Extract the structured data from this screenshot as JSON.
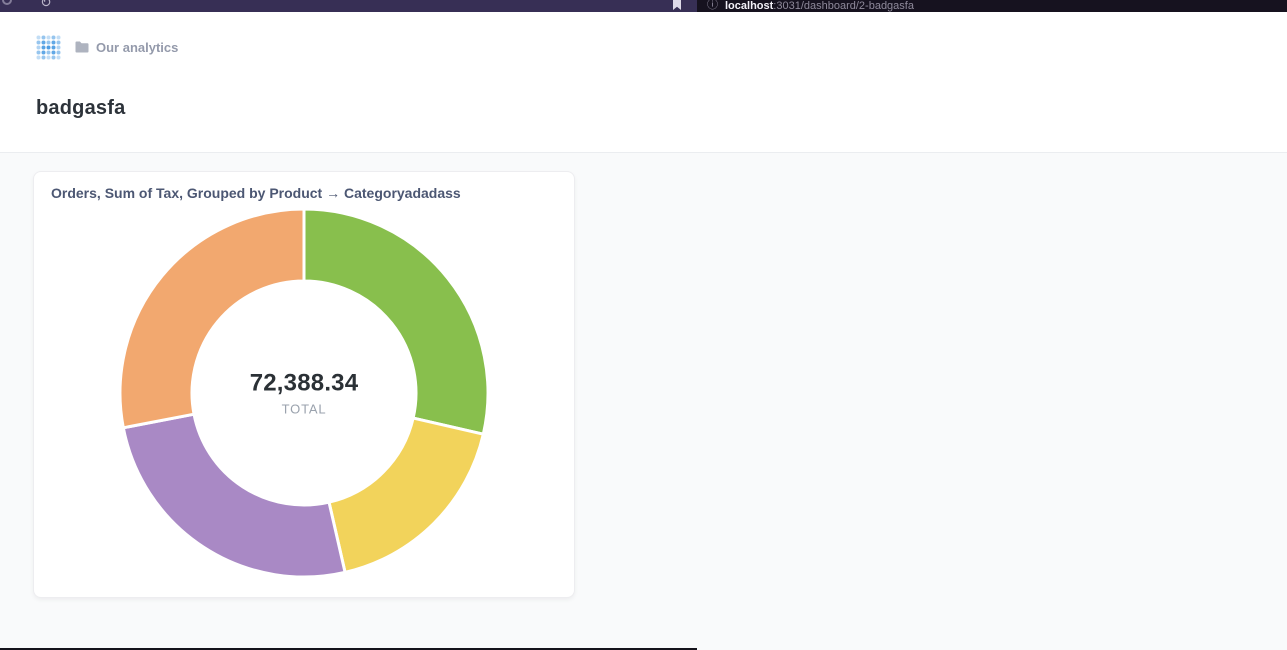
{
  "browser": {
    "url_host": "localhost",
    "url_rest": ":3031/dashboard/2-badgasfa"
  },
  "header": {
    "collection": "Our analytics"
  },
  "page": {
    "title": "badgasfa"
  },
  "card": {
    "title": "Orders, Sum of Tax, Grouped by Product → Categoryadadass"
  },
  "chart_data": {
    "type": "pie",
    "donut": true,
    "title": "Orders, Sum of Tax, Grouped by Product → Categoryadadass",
    "total_value": "72,388.34",
    "total_label": "TOTAL",
    "legend": false,
    "start_angle_deg": 0,
    "direction": "clockwise-from-top",
    "segments": [
      {
        "name": "green",
        "color": "#88BF4D",
        "value": 20700.0
      },
      {
        "name": "yellow",
        "color": "#F2D35B",
        "value": 12900.0
      },
      {
        "name": "purple",
        "color": "#A989C5",
        "value": 18500.0
      },
      {
        "name": "orange",
        "color": "#F2A86F",
        "value": 20288.34
      }
    ]
  }
}
